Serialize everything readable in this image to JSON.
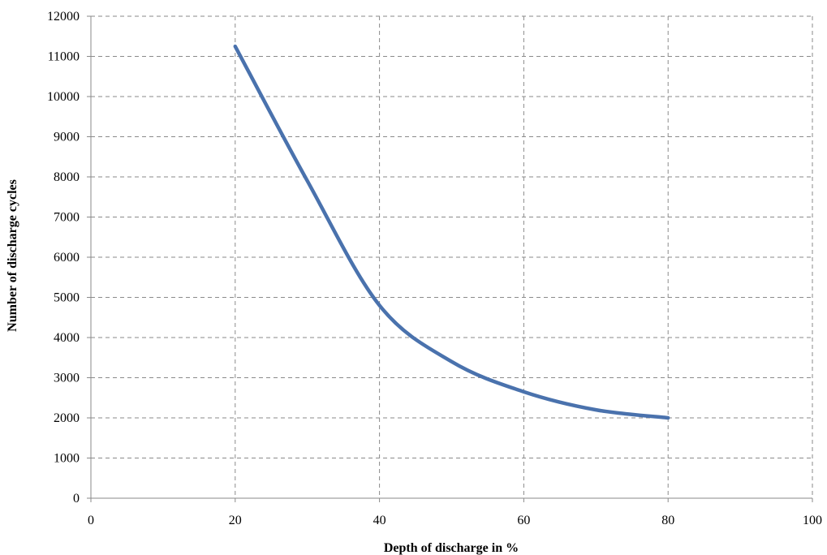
{
  "chart_data": {
    "type": "line",
    "title": "",
    "xlabel": "Depth of discharge in %",
    "ylabel": "Number of discharge cycles",
    "xlim": [
      0,
      100
    ],
    "ylim": [
      0,
      12000
    ],
    "x_ticks": [
      0,
      20,
      40,
      60,
      80,
      100
    ],
    "y_ticks": [
      0,
      1000,
      2000,
      3000,
      4000,
      5000,
      6000,
      7000,
      8000,
      9000,
      10000,
      11000,
      12000
    ],
    "grid": true,
    "legend": "none",
    "series": [
      {
        "color": "#4a72ad",
        "points": [
          {
            "x": 20,
            "y": 11250
          },
          {
            "x": 30,
            "y": 7900
          },
          {
            "x": 40,
            "y": 4800
          },
          {
            "x": 50,
            "y": 3400
          },
          {
            "x": 60,
            "y": 2650
          },
          {
            "x": 70,
            "y": 2200
          },
          {
            "x": 80,
            "y": 2000
          }
        ]
      }
    ]
  }
}
